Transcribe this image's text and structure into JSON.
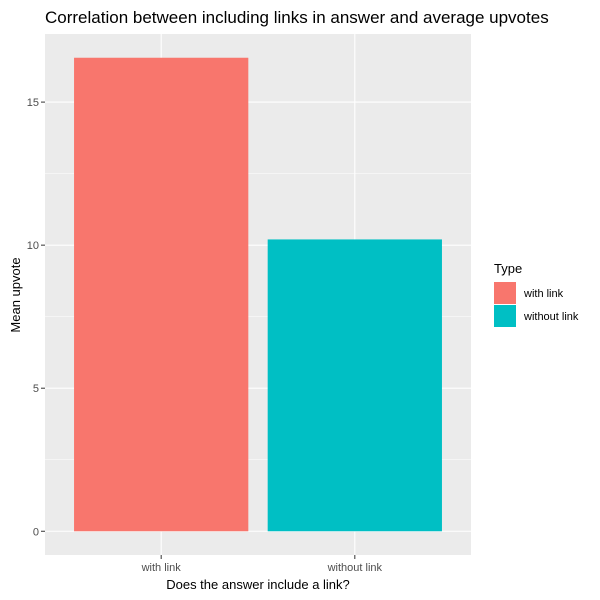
{
  "chart_data": {
    "type": "bar",
    "title": "Correlation between including links in answer and average upvotes",
    "xlabel": "Does the answer include a link?",
    "ylabel": "Mean upvote",
    "categories": [
      "with link",
      "without link"
    ],
    "values": [
      16.55,
      10.2
    ],
    "ylim": [
      -0.83,
      17.38
    ],
    "yticks": [
      0,
      5,
      10,
      15
    ],
    "yticklabels": [
      "0",
      "5",
      "10",
      "15"
    ],
    "grid": true,
    "background": "#ebebeb",
    "legend": {
      "title": "Type",
      "position": "right",
      "entries": [
        {
          "label": "with link",
          "color": "#f8766d"
        },
        {
          "label": "without link",
          "color": "#00bfc4"
        }
      ]
    }
  }
}
